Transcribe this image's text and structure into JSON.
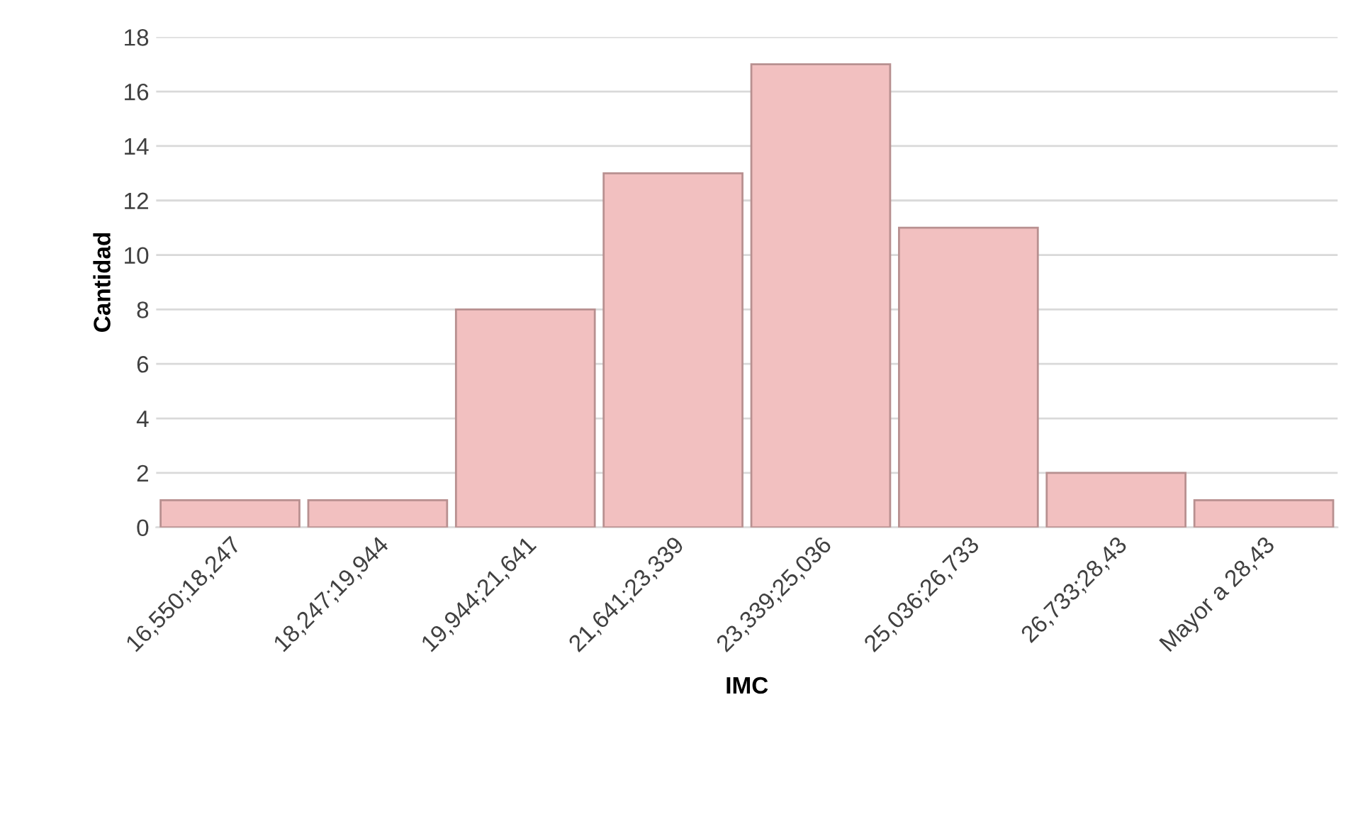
{
  "chart_data": {
    "type": "bar",
    "xlabel": "IMC",
    "ylabel": "Cantidad",
    "categories": [
      "16,550;18,247",
      "18,247;19,944",
      "19,944;21,641",
      "21,641;23,339",
      "23,339;25,036",
      "25,036;26,733",
      "26,733;28,43",
      "Mayor a 28,43"
    ],
    "values": [
      1,
      1,
      8,
      13,
      17,
      11,
      2,
      1
    ],
    "color": "#f2c0c0",
    "ylim": [
      0,
      18
    ],
    "yticks": [
      0,
      2,
      4,
      6,
      8,
      10,
      12,
      14,
      16,
      18
    ],
    "grid": "y",
    "legend": false
  }
}
